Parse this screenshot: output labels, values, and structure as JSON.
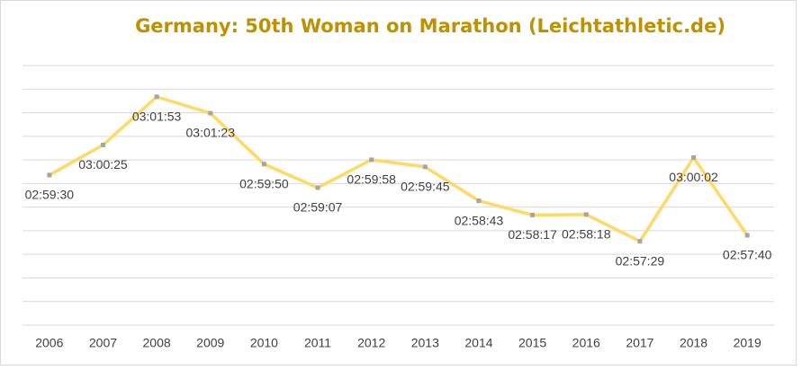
{
  "chart_data": {
    "type": "line",
    "title": "Germany: 50th Woman on Marathon (Leichtathletic.de)",
    "categories": [
      "2006",
      "2007",
      "2008",
      "2009",
      "2010",
      "2011",
      "2012",
      "2013",
      "2014",
      "2015",
      "2016",
      "2017",
      "2018",
      "2019"
    ],
    "values": [
      10770,
      10825,
      10913,
      10883,
      10790,
      10747,
      10798,
      10785,
      10723,
      10697,
      10698,
      10649,
      10802,
      10660
    ],
    "value_labels": [
      "02:59:30",
      "03:00:25",
      "03:01:53",
      "03:01:23",
      "02:59:50",
      "02:59:07",
      "02:59:58",
      "02:59:45",
      "02:58:43",
      "02:58:17",
      "02:58:18",
      "02:57:29",
      "03:00:02",
      "02:57:40"
    ],
    "color": "#ffd966",
    "marker_color": "#a5a5a5",
    "ylim": [
      10496,
      10970
    ],
    "grid": true
  }
}
